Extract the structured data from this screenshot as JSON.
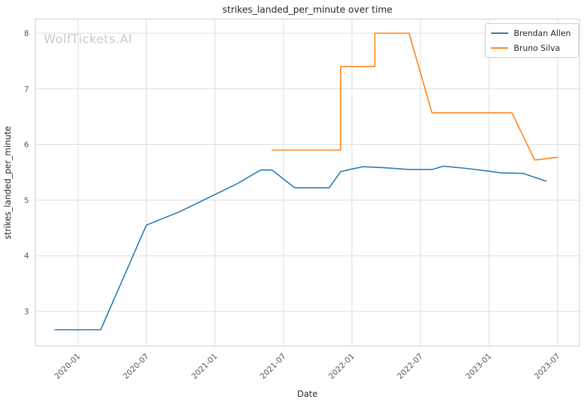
{
  "watermark": {
    "text": "WolfTickets.AI"
  },
  "chart_data": {
    "type": "line",
    "title": "strikes_landed_per_minute over time",
    "xlabel": "Date",
    "ylabel": "strikes_landed_per_minute",
    "grid": true,
    "legend_position": "upper right",
    "xlim": [
      2019.69,
      2023.66
    ],
    "ylim": [
      2.378,
      8.254
    ],
    "x_tick_values": [
      2020.0,
      2020.5,
      2021.0,
      2021.5,
      2022.0,
      2022.5,
      2023.0,
      2023.5
    ],
    "x_tick_labels": [
      "2020-01",
      "2020-07",
      "2021-01",
      "2021-07",
      "2022-01",
      "2022-07",
      "2023-01",
      "2023-07"
    ],
    "y_ticks": [
      3,
      4,
      5,
      6,
      7,
      8
    ],
    "series": [
      {
        "name": "Brendan Allen",
        "color": "#1f77b4",
        "points": [
          [
            "2019-11",
            2.67
          ],
          [
            "2020-03",
            2.67
          ],
          [
            "2020-07",
            4.55
          ],
          [
            "2020-10",
            4.8
          ],
          [
            "2021-01",
            5.1
          ],
          [
            "2021-03",
            5.3
          ],
          [
            "2021-05",
            5.54
          ],
          [
            "2021-06",
            5.54
          ],
          [
            "2021-08",
            5.22
          ],
          [
            "2021-11",
            5.22
          ],
          [
            "2021-12",
            5.51
          ],
          [
            "2022-01",
            5.56
          ],
          [
            "2022-02",
            5.6
          ],
          [
            "2022-04",
            5.58
          ],
          [
            "2022-06",
            5.55
          ],
          [
            "2022-08",
            5.55
          ],
          [
            "2022-09",
            5.61
          ],
          [
            "2022-11",
            5.57
          ],
          [
            "2023-01",
            5.52
          ],
          [
            "2023-02",
            5.49
          ],
          [
            "2023-04",
            5.48
          ],
          [
            "2023-06",
            5.34
          ]
        ]
      },
      {
        "name": "Bruno Silva",
        "color": "#ff7f0e",
        "points": [
          [
            "2021-06",
            5.9
          ],
          [
            "2021-12",
            5.9
          ],
          [
            "2021-12",
            7.4
          ],
          [
            "2022-03",
            7.4
          ],
          [
            "2022-03",
            8.0
          ],
          [
            "2022-06",
            8.0
          ],
          [
            "2022-08",
            6.57
          ],
          [
            "2023-03",
            6.57
          ],
          [
            "2023-05",
            5.72
          ],
          [
            "2023-07",
            5.77
          ]
        ]
      }
    ]
  }
}
